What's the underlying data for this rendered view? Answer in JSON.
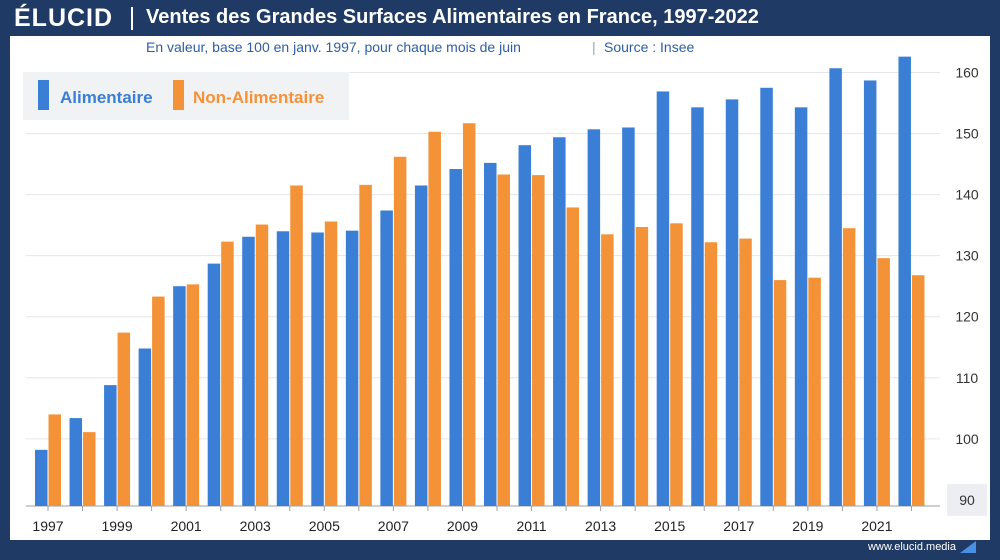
{
  "brand": {
    "logo": "ÉLUCID",
    "url": "www.elucid.media"
  },
  "colors": {
    "alimentaire": "#3a7fd5",
    "non_alimentaire": "#f39237",
    "header_bg": "#1f3a64"
  },
  "chart_data": {
    "type": "bar",
    "title": "Ventes des Grandes Surfaces Alimentaires en France, 1997-2022",
    "subtitle": "En valeur, base 100 en janv. 1997, pour chaque mois de juin",
    "source": "Source : Insee",
    "categories": [
      "1997",
      "1998",
      "1999",
      "2000",
      "2001",
      "2002",
      "2003",
      "2004",
      "2005",
      "2006",
      "2007",
      "2008",
      "2009",
      "2010",
      "2011",
      "2012",
      "2013",
      "2014",
      "2015",
      "2016",
      "2017",
      "2018",
      "2019",
      "2020",
      "2021",
      "2022"
    ],
    "x_tick_labels": [
      "1997",
      "1999",
      "2001",
      "2003",
      "2005",
      "2007",
      "2009",
      "2011",
      "2013",
      "2015",
      "2017",
      "2019",
      "2021"
    ],
    "series": [
      {
        "name": "Alimentaire",
        "values": [
          98.2,
          103.4,
          108.8,
          114.8,
          125.0,
          128.7,
          133.1,
          134.0,
          133.8,
          134.1,
          137.4,
          141.5,
          144.2,
          145.2,
          148.1,
          149.4,
          150.7,
          151.0,
          156.9,
          154.3,
          155.6,
          157.5,
          154.3,
          160.7,
          158.7,
          162.6
        ]
      },
      {
        "name": "Non-Alimentaire",
        "values": [
          104.0,
          101.1,
          117.4,
          123.3,
          125.3,
          132.3,
          135.1,
          141.5,
          135.6,
          141.6,
          146.2,
          150.3,
          151.7,
          143.3,
          143.2,
          137.9,
          133.5,
          134.7,
          135.3,
          132.2,
          132.8,
          126.0,
          126.4,
          134.5,
          129.6,
          126.8
        ]
      }
    ],
    "y_ticks": [
      90,
      100,
      110,
      120,
      130,
      140,
      150,
      160
    ],
    "ylim": [
      89,
      165
    ],
    "y_axis_position": "right",
    "legend_position": "top-left",
    "grid": true
  }
}
